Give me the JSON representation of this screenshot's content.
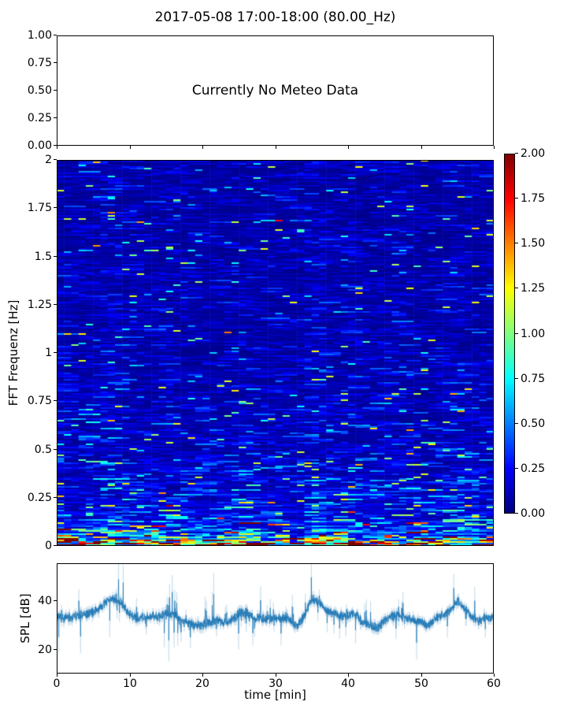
{
  "title": "2017-05-08 17:00-18:00 (80.00_Hz)",
  "colors": {
    "line": "#1f77b4",
    "axes": "#000000",
    "text": "#000000",
    "background": "#ffffff",
    "colormap": "jet",
    "colormap_stops": [
      "#000080",
      "#0000ff",
      "#00ffff",
      "#80ff80",
      "#ffff00",
      "#ff8000",
      "#ff0000",
      "#800000"
    ]
  },
  "meteo_panel": {
    "message": "Currently No Meteo Data",
    "ylim": [
      0,
      1
    ],
    "xlim": [
      0,
      60
    ],
    "yticks": [
      {
        "value": 1.0,
        "label": "1.00"
      },
      {
        "value": 0.75,
        "label": "0.75"
      },
      {
        "value": 0.5,
        "label": "0.50"
      },
      {
        "value": 0.25,
        "label": "0.25"
      },
      {
        "value": 0.0,
        "label": "0.00"
      }
    ],
    "xticks_unlabeled": [
      0,
      10,
      20,
      30,
      40,
      50,
      60
    ]
  },
  "spectrogram_panel": {
    "ylabel": "FFT Frequenz [Hz]",
    "ylim": [
      0,
      2
    ],
    "xlim": [
      0,
      60
    ],
    "yticks": [
      {
        "value": 2,
        "label": "2"
      },
      {
        "value": 1.75,
        "label": "1.75"
      },
      {
        "value": 1.5,
        "label": "1.5"
      },
      {
        "value": 1.25,
        "label": "1.25"
      },
      {
        "value": 1,
        "label": "1"
      },
      {
        "value": 0.75,
        "label": "0.75"
      },
      {
        "value": 0.5,
        "label": "0.5"
      },
      {
        "value": 0.25,
        "label": "0.25"
      },
      {
        "value": 0,
        "label": "0"
      }
    ]
  },
  "colorbar": {
    "vmin": 0,
    "vmax": 2,
    "colormap": "jet",
    "ticks": [
      {
        "value": 2.0,
        "label": "2.00"
      },
      {
        "value": 1.75,
        "label": "1.75"
      },
      {
        "value": 1.5,
        "label": "1.50"
      },
      {
        "value": 1.25,
        "label": "1.25"
      },
      {
        "value": 1.0,
        "label": "1.00"
      },
      {
        "value": 0.75,
        "label": "0.75"
      },
      {
        "value": 0.5,
        "label": "0.50"
      },
      {
        "value": 0.25,
        "label": "0.25"
      },
      {
        "value": 0.0,
        "label": "0.00"
      }
    ]
  },
  "spl_panel": {
    "ylabel": "SPL [dB]",
    "xlabel": "time [min]",
    "ylim": [
      10.3,
      55.5
    ],
    "xlim": [
      0,
      60
    ],
    "yticks": [
      {
        "value": 40,
        "label": "40"
      },
      {
        "value": 20,
        "label": "20"
      }
    ],
    "xticks": [
      {
        "value": 0,
        "label": "0"
      },
      {
        "value": 10,
        "label": "10"
      },
      {
        "value": 20,
        "label": "20"
      },
      {
        "value": 30,
        "label": "30"
      },
      {
        "value": 40,
        "label": "40"
      },
      {
        "value": 50,
        "label": "50"
      },
      {
        "value": 60,
        "label": "60"
      }
    ]
  },
  "chart_data": [
    {
      "panel": "top",
      "type": "empty",
      "message": "Currently No Meteo Data",
      "xlim": [
        0,
        60
      ],
      "ylim": [
        0,
        1
      ],
      "yticks": [
        0,
        0.25,
        0.5,
        0.75,
        1
      ],
      "note": "axes drawn, no data plotted"
    },
    {
      "panel": "middle",
      "type": "heatmap",
      "ylabel": "FFT Frequenz [Hz]",
      "x_range_min": [
        0,
        60
      ],
      "y_range_hz": [
        0,
        2
      ],
      "value_range": [
        0,
        2
      ],
      "colormap": "jet",
      "colorbar_ticks": [
        0,
        0.25,
        0.5,
        0.75,
        1,
        1.25,
        1.5,
        1.75,
        2
      ],
      "time_bins": 60,
      "freq_bins": 245,
      "seed": 20170508,
      "freq_power_profile": {
        "description": "mean spectral value vs frequency f [Hz]: base + dc_amp*exp(-f/dc_decay) + low_amp*exp(-f/low_decay)",
        "base": 0.13,
        "dc_amp": 1.9,
        "dc_decay_hz": 0.03,
        "low_amp": 0.33,
        "low_decay_hz": 0.32
      },
      "texture": {
        "run_length_max": 3,
        "exp_noise_floor": 0.2,
        "exp_noise_gain": 0.8,
        "cell_jitter": 0.4,
        "sparkle_prob": 0.02
      },
      "column_modulation": {
        "base": 0.82,
        "per_db_gain": 0.028,
        "reference_db": 33
      },
      "summary": "Mostly low power (dark/medium blue) above 0.3 Hz with sparse cyan streaks; power rises below 0.15 Hz through cyan/green/yellow; saturated red/dark-red band at the lowest frequencies"
    },
    {
      "panel": "bottom",
      "type": "line",
      "xlabel": "time [min]",
      "ylabel": "SPL [dB]",
      "xlim": [
        0,
        60
      ],
      "ylim": [
        10.3,
        55.5
      ],
      "xticks": [
        0,
        10,
        20,
        30,
        40,
        50,
        60
      ],
      "yticks": [
        20,
        40
      ],
      "line_color": "#1f77b4",
      "samples": 2800,
      "seed": 7,
      "noise": {
        "jitter_db": 1.1,
        "spike_prob": 0.05,
        "spike_db_max": 10,
        "halo_gain": 1.8,
        "halo_alpha": 0.25
      },
      "envelope_db_by_min": [
        [
          0,
          34
        ],
        [
          1,
          33
        ],
        [
          2,
          33.5
        ],
        [
          3,
          34
        ],
        [
          4,
          34.5
        ],
        [
          5,
          35.5
        ],
        [
          6,
          37
        ],
        [
          7,
          40.5
        ],
        [
          8,
          41
        ],
        [
          9,
          39
        ],
        [
          10,
          34.5
        ],
        [
          11,
          33
        ],
        [
          12,
          33.5
        ],
        [
          13,
          34
        ],
        [
          14,
          33.5
        ],
        [
          15,
          34.5
        ],
        [
          16,
          35
        ],
        [
          17,
          32.5
        ],
        [
          18,
          31
        ],
        [
          19,
          30
        ],
        [
          20,
          30.5
        ],
        [
          21,
          31
        ],
        [
          22,
          32.5
        ],
        [
          23,
          31
        ],
        [
          24,
          32
        ],
        [
          25,
          35
        ],
        [
          26,
          35.5
        ],
        [
          27,
          33
        ],
        [
          28,
          33
        ],
        [
          29,
          32.5
        ],
        [
          30,
          33
        ],
        [
          31,
          33
        ],
        [
          32,
          32.5
        ],
        [
          33,
          30
        ],
        [
          34,
          34
        ],
        [
          35,
          41
        ],
        [
          36,
          39.5
        ],
        [
          37,
          36
        ],
        [
          38,
          35
        ],
        [
          39,
          34
        ],
        [
          40,
          34.5
        ],
        [
          41,
          35
        ],
        [
          42,
          31.5
        ],
        [
          43,
          30
        ],
        [
          44,
          29
        ],
        [
          45,
          32
        ],
        [
          46,
          34
        ],
        [
          47,
          34
        ],
        [
          48,
          33
        ],
        [
          49,
          32
        ],
        [
          50,
          31.5
        ],
        [
          51,
          30
        ],
        [
          52,
          33
        ],
        [
          53,
          34.5
        ],
        [
          54,
          36
        ],
        [
          55,
          40
        ],
        [
          56,
          37
        ],
        [
          57,
          33.5
        ],
        [
          58,
          32
        ],
        [
          59,
          33
        ],
        [
          60,
          33.5
        ]
      ]
    }
  ]
}
